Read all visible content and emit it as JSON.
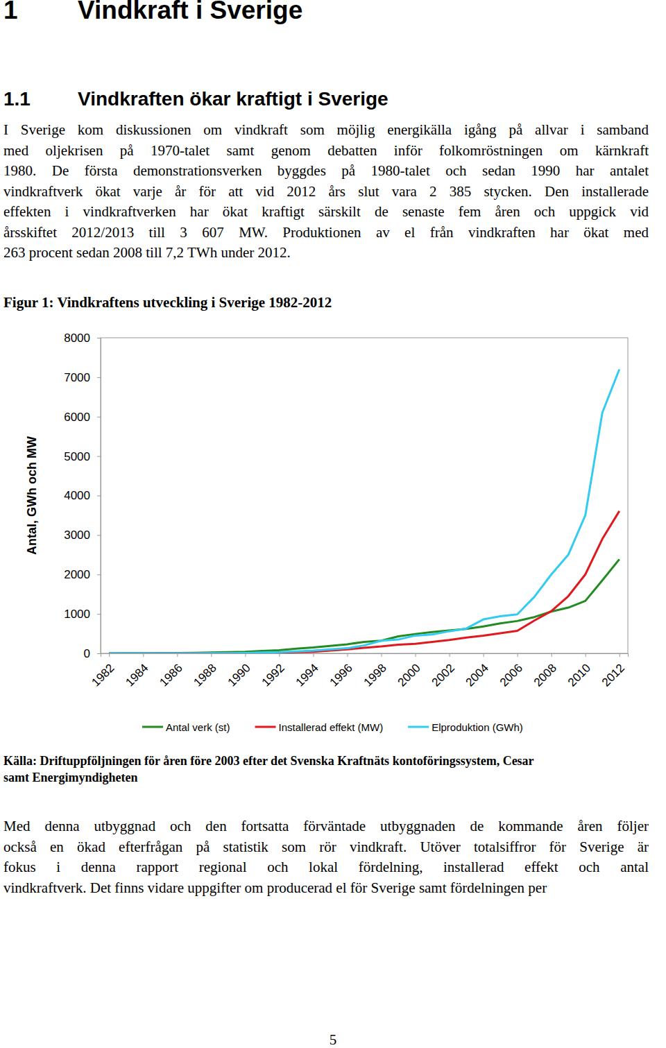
{
  "document": {
    "heading_number": "1",
    "heading": "Vindkraft i Sverige",
    "subheading_number": "1.1",
    "subheading": "Vindkraften ökar kraftigt i Sverige",
    "paragraph_1": [
      "I Sverige kom diskussionen om vindkraft som möjlig energikälla igång på allvar i samband",
      "med oljekrisen på 1970-talet samt genom debatten inför folkomröstningen om kärnkraft",
      "1980. De första demonstrationsverken byggdes på 1980-talet och sedan 1990 har antalet",
      "vindkraftverk ökat varje år för att vid 2012 års slut vara 2 385 stycken. Den installerade",
      "effekten i vindkraftverken har ökat kraftigt särskilt de senaste fem åren och uppgick vid",
      "årsskiftet 2012/2013 till 3 607 MW. Produktionen av el från vindkraften har ökat med",
      "263 procent sedan 2008 till 7,2 TWh under 2012."
    ],
    "source_lines": [
      "Källa: Driftuppföljningen för åren före 2003 efter det Svenska Kraftnäts kontoföringssystem, Cesar",
      "samt Energimyndigheten"
    ],
    "paragraph_2": [
      "Med denna utbyggnad och den fortsatta förväntade utbyggnaden de kommande åren följer",
      "också en ökad efterfrågan på statistik som rör vindkraft. Utöver totalsiffror för Sverige är",
      "fokus i denna rapport regional och lokal fördelning, installerad effekt och antal",
      "vindkraftverk. Det finns vidare uppgifter om producerad el för Sverige samt fördelningen per"
    ],
    "page_number": "5"
  },
  "chart_data": {
    "type": "line",
    "title": "Figur 1: Vindkraftens utveckling i Sverige 1982-2012",
    "y_label": "Antal, GWh och MW",
    "x": [
      1982,
      1983,
      1984,
      1985,
      1986,
      1987,
      1988,
      1989,
      1990,
      1991,
      1992,
      1993,
      1994,
      1995,
      1996,
      1997,
      1998,
      1999,
      2000,
      2001,
      2002,
      2003,
      2004,
      2005,
      2006,
      2007,
      2008,
      2009,
      2010,
      2011,
      2012
    ],
    "series": [
      {
        "name": "Antal verk (st)",
        "color": "#228b22",
        "values": [
          2,
          3,
          5,
          7,
          10,
          15,
          20,
          30,
          40,
          60,
          80,
          120,
          150,
          190,
          230,
          290,
          320,
          430,
          490,
          540,
          580,
          620,
          680,
          760,
          820,
          920,
          1060,
          1160,
          1330,
          1850,
          2385
        ]
      },
      {
        "name": "Installerad effekt (MW)",
        "color": "#e0191e",
        "values": [
          1,
          1,
          2,
          3,
          4,
          5,
          6,
          7,
          8,
          10,
          20,
          30,
          40,
          70,
          100,
          140,
          175,
          220,
          240,
          290,
          340,
          400,
          450,
          510,
          570,
          830,
          1070,
          1450,
          2000,
          2900,
          3607
        ]
      },
      {
        "name": "Elproduktion (GWh)",
        "color": "#33ccf0",
        "values": [
          0,
          0,
          0,
          0,
          1,
          2,
          4,
          6,
          10,
          20,
          30,
          50,
          70,
          100,
          130,
          200,
          320,
          350,
          450,
          480,
          560,
          630,
          860,
          940,
          990,
          1430,
          2000,
          2500,
          3500,
          6100,
          7200
        ]
      }
    ],
    "xlim": [
      1981.5,
      2012.5
    ],
    "xticks": [
      1982,
      1984,
      1986,
      1988,
      1990,
      1992,
      1994,
      1996,
      1998,
      2000,
      2002,
      2004,
      2006,
      2008,
      2010,
      2012
    ],
    "ylim": [
      0,
      8000
    ],
    "yticks": [
      0,
      1000,
      2000,
      3000,
      4000,
      5000,
      6000,
      7000,
      8000
    ],
    "grid": false,
    "legend": "bottom"
  }
}
